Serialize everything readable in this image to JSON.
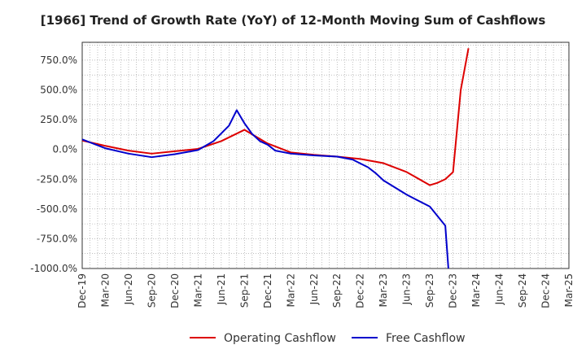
{
  "chart_data": {
    "type": "line",
    "title": "[1966]  Trend of Growth Rate (YoY) of 12-Month Moving Sum of Cashflows",
    "xlabel": "",
    "ylabel": "",
    "ylim": [
      -1000,
      900
    ],
    "yticks": [
      750,
      500,
      250,
      0,
      -250,
      -500,
      -750,
      -1000
    ],
    "ytick_labels": [
      "750.0%",
      "500.0%",
      "250.0%",
      "0.0%",
      "-250.0%",
      "-500.0%",
      "-750.0%",
      "-1000.0%"
    ],
    "xticks": [
      "Dec-19",
      "Mar-20",
      "Jun-20",
      "Sep-20",
      "Dec-20",
      "Mar-21",
      "Jun-21",
      "Sep-21",
      "Dec-21",
      "Mar-22",
      "Jun-22",
      "Sep-22",
      "Dec-22",
      "Mar-23",
      "Jun-23",
      "Sep-23",
      "Dec-23",
      "Mar-24",
      "Jun-24",
      "Sep-24",
      "Dec-24",
      "Mar-25"
    ],
    "grid": true,
    "legend_position": "bottom",
    "series": [
      {
        "name": "Operating Cashflow",
        "color": "#dd0000",
        "x": [
          0,
          3,
          6,
          9,
          12,
          15,
          18,
          21,
          24,
          27,
          30,
          33,
          36,
          39,
          42,
          45,
          46,
          47,
          48,
          49,
          50
        ],
        "values": [
          75,
          30,
          -10,
          -35,
          -15,
          5,
          70,
          165,
          50,
          -25,
          -45,
          -60,
          -80,
          -115,
          -190,
          -300,
          -280,
          -250,
          -190,
          500,
          850
        ]
      },
      {
        "name": "Free Cashflow",
        "color": "#0000cc",
        "x": [
          0,
          3,
          6,
          9,
          12,
          15,
          17,
          19,
          20,
          21,
          22,
          23,
          24,
          25,
          27,
          30,
          33,
          35,
          37,
          38,
          39,
          42,
          45,
          46,
          47,
          47.4
        ],
        "values": [
          85,
          10,
          -35,
          -65,
          -40,
          -5,
          70,
          200,
          330,
          220,
          130,
          70,
          40,
          -10,
          -35,
          -50,
          -60,
          -85,
          -150,
          -200,
          -260,
          -380,
          -480,
          -560,
          -640,
          -1000
        ]
      }
    ]
  }
}
